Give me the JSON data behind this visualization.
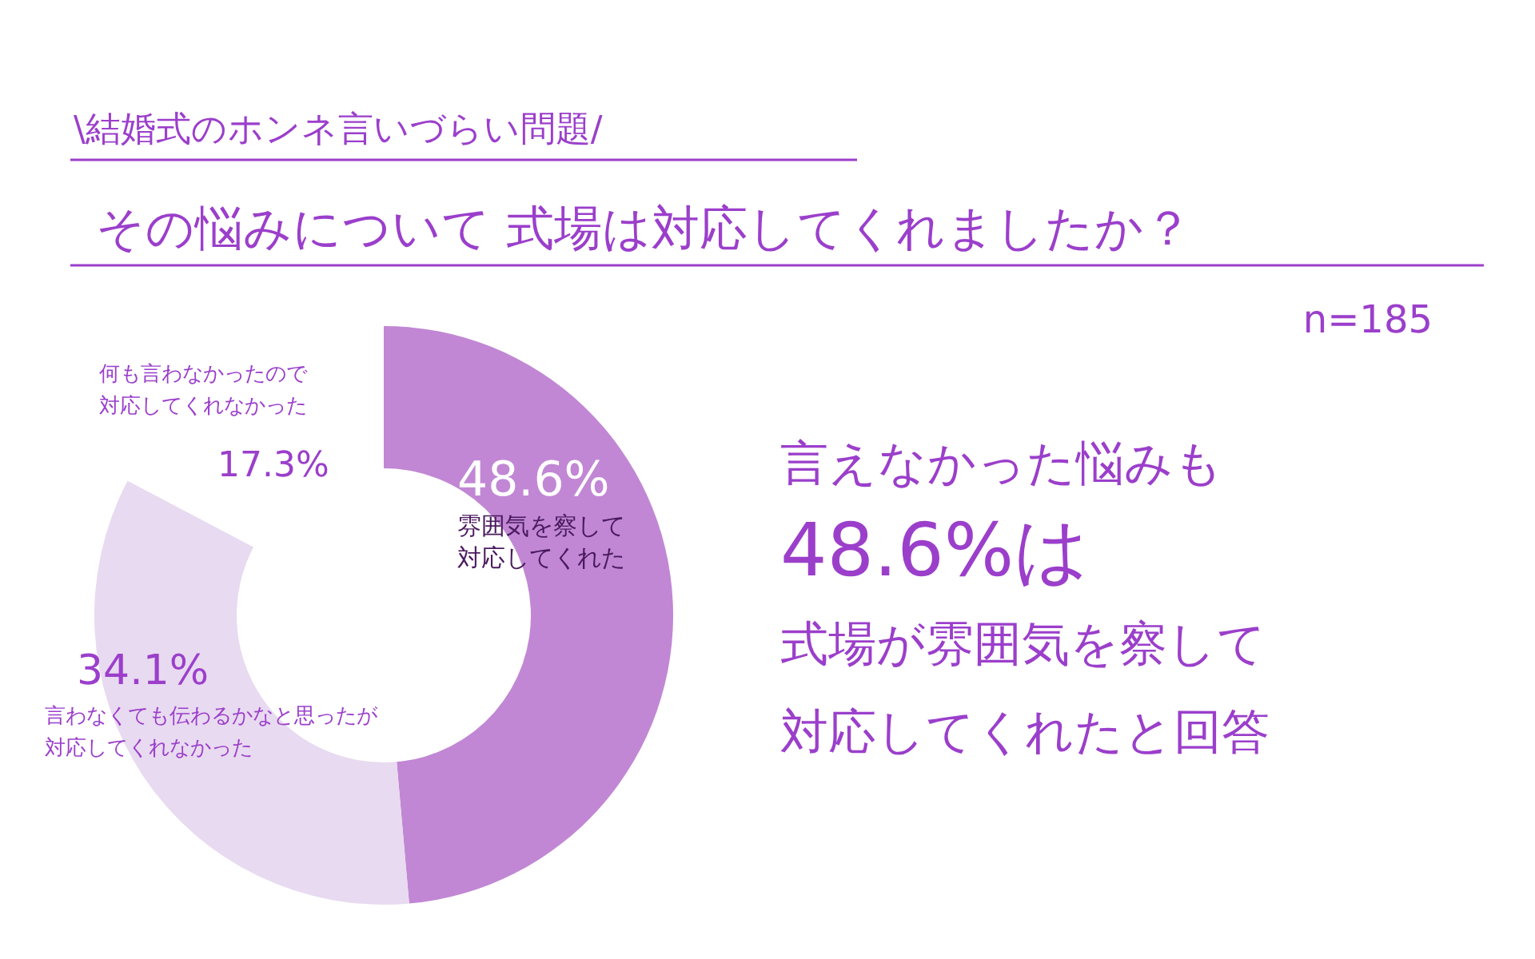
{
  "chart_data": {
    "type": "donut",
    "subtitle": "\\結婚式のホンネ言いづらい問題/",
    "title": "その悩みについて 式場は対応してくれましたか？",
    "categories": [
      "雰囲気を察して対応してくれた",
      "言わなくても伝わるかなと思ったが対応してくれなかった",
      "何も言わなかったので対応してくれなかった"
    ],
    "values": [
      48.6,
      34.1,
      17.3
    ],
    "colors": [
      "#c187d4",
      "#e8daf0",
      "#ffffff"
    ],
    "value_labels": [
      "48.6%",
      "34.1%",
      "17.3%"
    ],
    "annotations": [
      "n=185",
      "言えなかった悩みも",
      "48.6%は",
      "式場が雰囲気を察して",
      "対応してくれたと回答"
    ]
  }
}
